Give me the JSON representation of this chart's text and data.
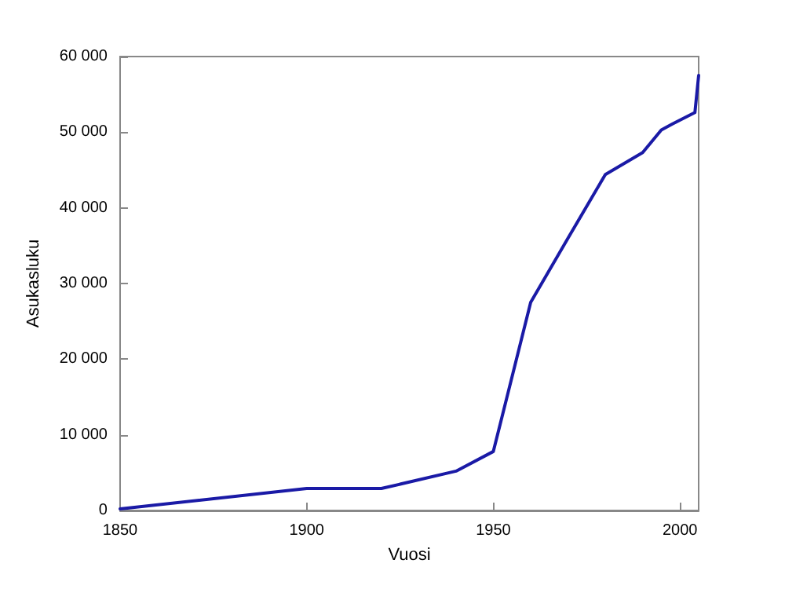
{
  "chart_data": {
    "type": "line",
    "xlabel": "Vuosi",
    "ylabel": "Asukasluku",
    "x": [
      1850,
      1900,
      1920,
      1940,
      1950,
      1960,
      1970,
      1980,
      1990,
      1995,
      1998,
      2004,
      2005
    ],
    "series": [
      {
        "color": "#1a1aa6",
        "values": [
          200,
          2900,
          2900,
          5200,
          7800,
          27500,
          36000,
          44400,
          47300,
          50300,
          51100,
          52600,
          57500
        ]
      }
    ],
    "xlim": [
      1850,
      2005
    ],
    "xticks": [
      1850,
      1900,
      1950,
      2000
    ],
    "ylim": [
      0,
      60000
    ],
    "yticks": [
      0,
      {
        "value": 10000,
        "label": "10 000"
      },
      {
        "value": 20000,
        "label": "20 000"
      },
      {
        "value": 30000,
        "label": "30 000"
      },
      {
        "value": 40000,
        "label": "40 000"
      },
      {
        "value": 50000,
        "label": "50 000"
      },
      {
        "value": 60000,
        "label": "60 000"
      }
    ],
    "grid": false,
    "marker": "none",
    "line_style": "solid"
  }
}
